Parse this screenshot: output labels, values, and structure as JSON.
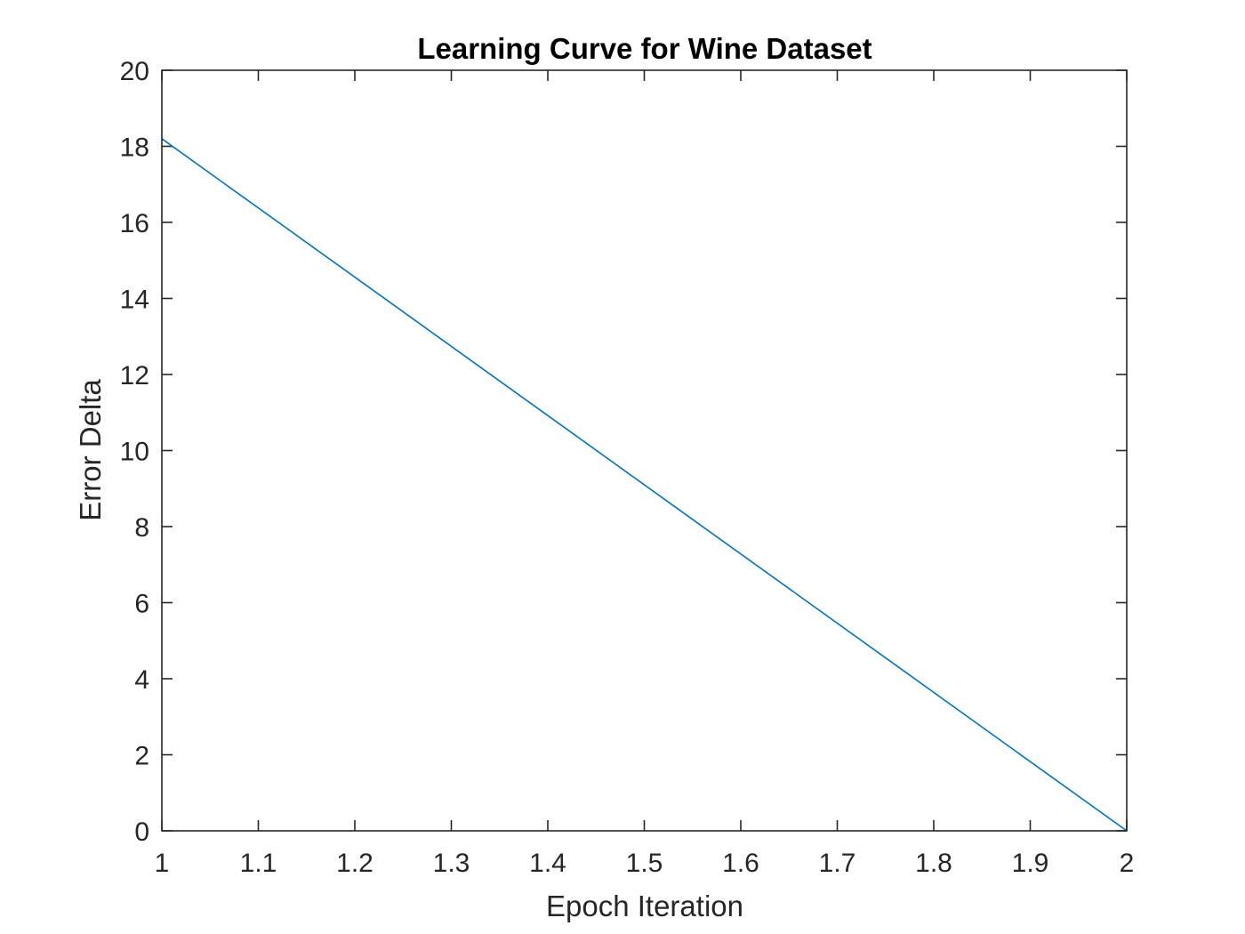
{
  "chart_data": {
    "type": "line",
    "title": "Learning Curve for Wine Dataset",
    "xlabel": "Epoch Iteration",
    "ylabel": "Error Delta",
    "xlim": [
      1,
      2
    ],
    "ylim": [
      0,
      20
    ],
    "x_ticks": [
      "1",
      "1.1",
      "1.2",
      "1.3",
      "1.4",
      "1.5",
      "1.6",
      "1.7",
      "1.8",
      "1.9",
      "2"
    ],
    "y_ticks": [
      "0",
      "2",
      "4",
      "6",
      "8",
      "10",
      "12",
      "14",
      "16",
      "18",
      "20"
    ],
    "grid": false,
    "legend": "none",
    "series": [
      {
        "color": "#0072BD",
        "x": [
          1,
          2
        ],
        "y": [
          18.2,
          0
        ]
      }
    ]
  }
}
